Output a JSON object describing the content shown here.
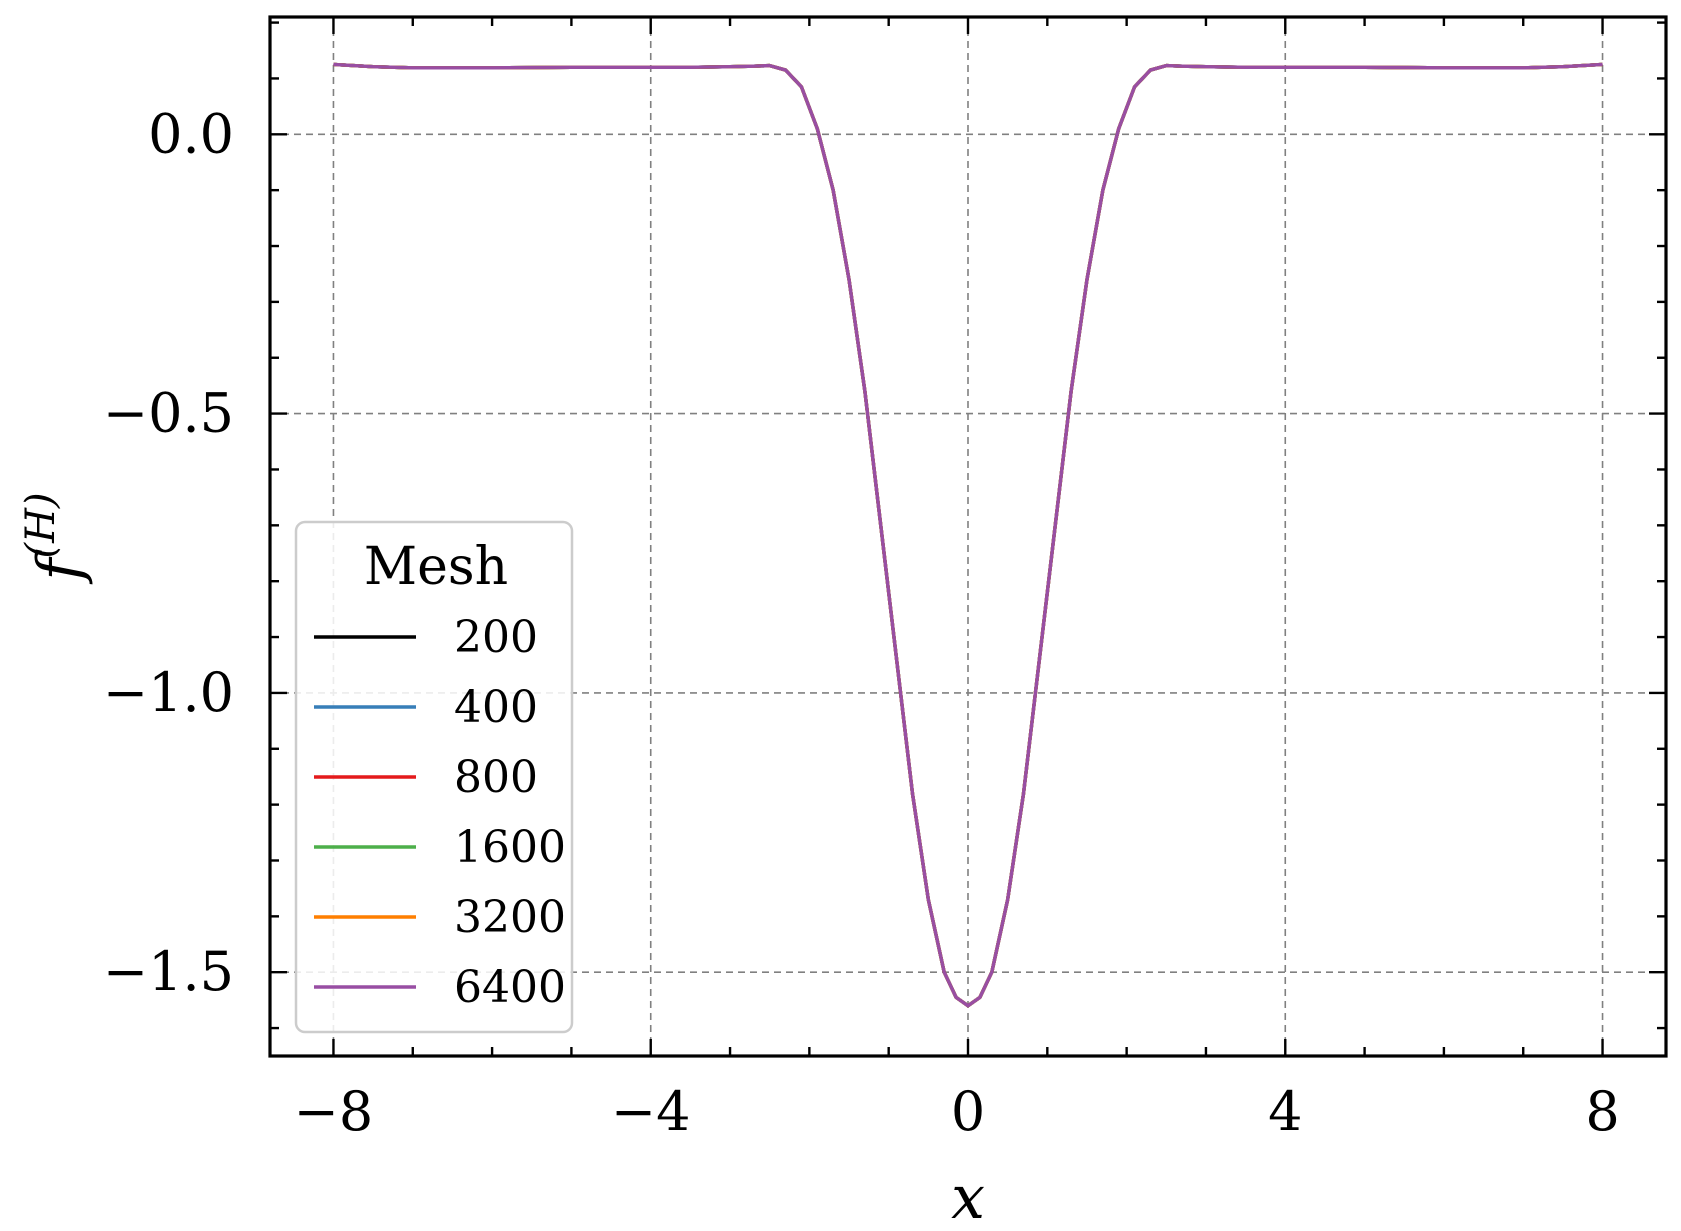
{
  "chart_data": {
    "type": "line",
    "xlabel": "x",
    "ylabel": "f(H)",
    "ylabel_base": "f",
    "ylabel_sup": "(H)",
    "xlim": [
      -8.8,
      8.8
    ],
    "ylim": [
      -1.65,
      0.21
    ],
    "xticks": [
      -8,
      -4,
      0,
      4,
      8
    ],
    "xtick_labels": [
      "−8",
      "−4",
      "0",
      "4",
      "8"
    ],
    "yticks": [
      0.0,
      -0.5,
      -1.0,
      -1.5
    ],
    "ytick_labels": [
      "0.0",
      "−0.5",
      "−1.0",
      "−1.5"
    ],
    "x_minor_step": 1,
    "y_minor_step": 0.1,
    "grid": true,
    "legend": {
      "title": "Mesh",
      "placement": "lower-left"
    },
    "x": [
      -8,
      -7.5,
      -7,
      -6,
      -5,
      -4,
      -3.5,
      -3,
      -2.7,
      -2.5,
      -2.3,
      -2.1,
      -1.9,
      -1.7,
      -1.5,
      -1.3,
      -1.1,
      -0.9,
      -0.7,
      -0.5,
      -0.3,
      -0.15,
      0,
      0.15,
      0.3,
      0.5,
      0.7,
      0.9,
      1.1,
      1.3,
      1.5,
      1.7,
      1.9,
      2.1,
      2.3,
      2.5,
      2.7,
      3,
      3.5,
      4,
      5,
      6,
      7,
      7.5,
      8
    ],
    "series": [
      {
        "name": "200",
        "color": "#000000",
        "values": [
          0.125,
          0.121,
          0.119,
          0.119,
          0.12,
          0.12,
          0.12,
          0.121,
          0.122,
          0.123,
          0.115,
          0.085,
          0.01,
          -0.1,
          -0.26,
          -0.46,
          -0.7,
          -0.94,
          -1.18,
          -1.37,
          -1.5,
          -1.545,
          -1.56,
          -1.545,
          -1.5,
          -1.37,
          -1.18,
          -0.94,
          -0.7,
          -0.46,
          -0.26,
          -0.1,
          0.01,
          0.085,
          0.115,
          0.123,
          0.122,
          0.121,
          0.12,
          0.12,
          0.12,
          0.119,
          0.119,
          0.121,
          0.125
        ]
      },
      {
        "name": "400",
        "color": "#377eb8",
        "values": [
          0.125,
          0.121,
          0.119,
          0.119,
          0.12,
          0.12,
          0.12,
          0.121,
          0.122,
          0.123,
          0.115,
          0.085,
          0.01,
          -0.1,
          -0.26,
          -0.46,
          -0.7,
          -0.94,
          -1.18,
          -1.37,
          -1.5,
          -1.545,
          -1.56,
          -1.545,
          -1.5,
          -1.37,
          -1.18,
          -0.94,
          -0.7,
          -0.46,
          -0.26,
          -0.1,
          0.01,
          0.085,
          0.115,
          0.123,
          0.122,
          0.121,
          0.12,
          0.12,
          0.12,
          0.119,
          0.119,
          0.121,
          0.125
        ]
      },
      {
        "name": "800",
        "color": "#e41a1c",
        "values": [
          0.125,
          0.121,
          0.119,
          0.119,
          0.12,
          0.12,
          0.12,
          0.121,
          0.122,
          0.123,
          0.115,
          0.085,
          0.01,
          -0.1,
          -0.26,
          -0.46,
          -0.7,
          -0.94,
          -1.18,
          -1.37,
          -1.5,
          -1.545,
          -1.56,
          -1.545,
          -1.5,
          -1.37,
          -1.18,
          -0.94,
          -0.7,
          -0.46,
          -0.26,
          -0.1,
          0.01,
          0.085,
          0.115,
          0.123,
          0.122,
          0.121,
          0.12,
          0.12,
          0.12,
          0.119,
          0.119,
          0.121,
          0.125
        ]
      },
      {
        "name": "1600",
        "color": "#4daf4a",
        "values": [
          0.125,
          0.121,
          0.119,
          0.119,
          0.12,
          0.12,
          0.12,
          0.121,
          0.122,
          0.123,
          0.115,
          0.085,
          0.01,
          -0.1,
          -0.26,
          -0.46,
          -0.7,
          -0.94,
          -1.18,
          -1.37,
          -1.5,
          -1.545,
          -1.56,
          -1.545,
          -1.5,
          -1.37,
          -1.18,
          -0.94,
          -0.7,
          -0.46,
          -0.26,
          -0.1,
          0.01,
          0.085,
          0.115,
          0.123,
          0.122,
          0.121,
          0.12,
          0.12,
          0.12,
          0.119,
          0.119,
          0.121,
          0.125
        ]
      },
      {
        "name": "3200",
        "color": "#ff7f00",
        "values": [
          0.125,
          0.121,
          0.119,
          0.119,
          0.12,
          0.12,
          0.12,
          0.121,
          0.122,
          0.123,
          0.115,
          0.085,
          0.01,
          -0.1,
          -0.26,
          -0.46,
          -0.7,
          -0.94,
          -1.18,
          -1.37,
          -1.5,
          -1.545,
          -1.56,
          -1.545,
          -1.5,
          -1.37,
          -1.18,
          -0.94,
          -0.7,
          -0.46,
          -0.26,
          -0.1,
          0.01,
          0.085,
          0.115,
          0.123,
          0.122,
          0.121,
          0.12,
          0.12,
          0.12,
          0.119,
          0.119,
          0.121,
          0.125
        ]
      },
      {
        "name": "6400",
        "color": "#984ea3",
        "values": [
          0.125,
          0.121,
          0.119,
          0.119,
          0.12,
          0.12,
          0.12,
          0.121,
          0.122,
          0.123,
          0.115,
          0.085,
          0.01,
          -0.1,
          -0.26,
          -0.46,
          -0.7,
          -0.94,
          -1.18,
          -1.37,
          -1.5,
          -1.545,
          -1.56,
          -1.545,
          -1.5,
          -1.37,
          -1.18,
          -0.94,
          -0.7,
          -0.46,
          -0.26,
          -0.1,
          0.01,
          0.085,
          0.115,
          0.123,
          0.122,
          0.121,
          0.12,
          0.12,
          0.12,
          0.119,
          0.119,
          0.121,
          0.125
        ]
      }
    ]
  }
}
